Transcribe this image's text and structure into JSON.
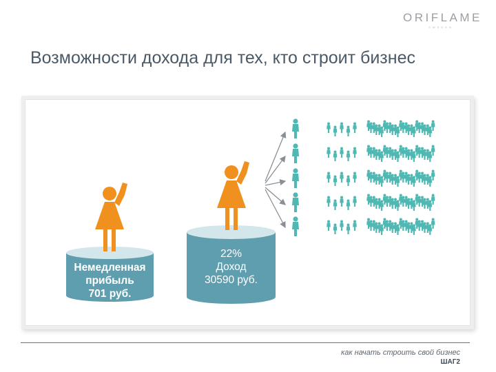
{
  "logo": {
    "text": "ORIFLAME",
    "tagline": "SWEDEN"
  },
  "title": "Возможности дохода для тех, кто строит бизнес",
  "colors": {
    "orange": "#f0901e",
    "teal": "#4fb8b3",
    "cylinder": "#5e9eaf",
    "cylinder_top": "#d3e6ec",
    "arrow": "#8a8f94"
  },
  "icons": {
    "woman": "woman-figure-icon",
    "people": "person-icon",
    "arrow": "arrow-right-icon"
  },
  "cylinder_left": {
    "line1": "Немедленная",
    "line2": "прибыль",
    "line3": "701 руб."
  },
  "cylinder_right": {
    "line1": "22%",
    "line2": "Доход",
    "line3": "30590 руб."
  },
  "network": {
    "rows": 5,
    "level1_per_row": 1,
    "level2_per_row": 5,
    "level3_per_row": 25
  },
  "footer": {
    "text": "как начать строить свой бизнес",
    "step": "ШАГ2"
  }
}
